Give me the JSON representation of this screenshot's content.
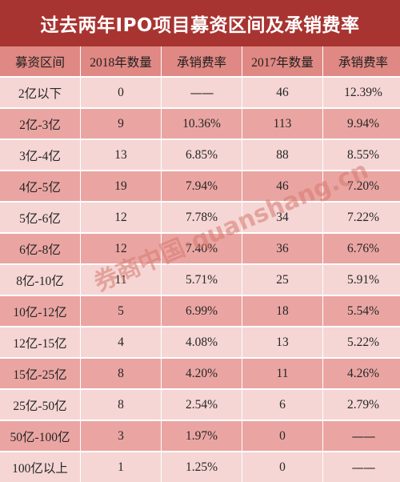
{
  "title": "过去两年IPO项目募资区间及承销费率",
  "header": [
    "募资区间",
    "2018年数量",
    "承销费率",
    "2017年数量",
    "承销费率"
  ],
  "rows": [
    [
      "2亿以下",
      "0",
      "——",
      "46",
      "12.39%"
    ],
    [
      "2亿-3亿",
      "9",
      "10.36%",
      "113",
      "9.94%"
    ],
    [
      "3亿-4亿",
      "13",
      "6.85%",
      "88",
      "8.55%"
    ],
    [
      "4亿-5亿",
      "19",
      "7.94%",
      "46",
      "7.20%"
    ],
    [
      "5亿-6亿",
      "12",
      "7.78%",
      "34",
      "7.22%"
    ],
    [
      "6亿-8亿",
      "12",
      "7.40%",
      "36",
      "6.76%"
    ],
    [
      "8亿-10亿",
      "11",
      "5.71%",
      "25",
      "5.91%"
    ],
    [
      "10亿-12亿",
      "5",
      "6.99%",
      "18",
      "5.54%"
    ],
    [
      "12亿-15亿",
      "4",
      "4.08%",
      "13",
      "5.22%"
    ],
    [
      "15亿-25亿",
      "8",
      "4.20%",
      "11",
      "4.26%"
    ],
    [
      "25亿-50亿",
      "8",
      "2.54%",
      "6",
      "2.79%"
    ],
    [
      "50亿-100亿",
      "3",
      "1.97%",
      "0",
      "——"
    ],
    [
      "100亿以上",
      "1",
      "1.25%",
      "0",
      "——"
    ]
  ],
  "watermark": "券商中国·quanshang.cn",
  "colors": {
    "title_bg": "#a83431",
    "header_bg": "#e08883",
    "row_light": "#f5d6d4",
    "row_dark": "#eaa5a2"
  }
}
